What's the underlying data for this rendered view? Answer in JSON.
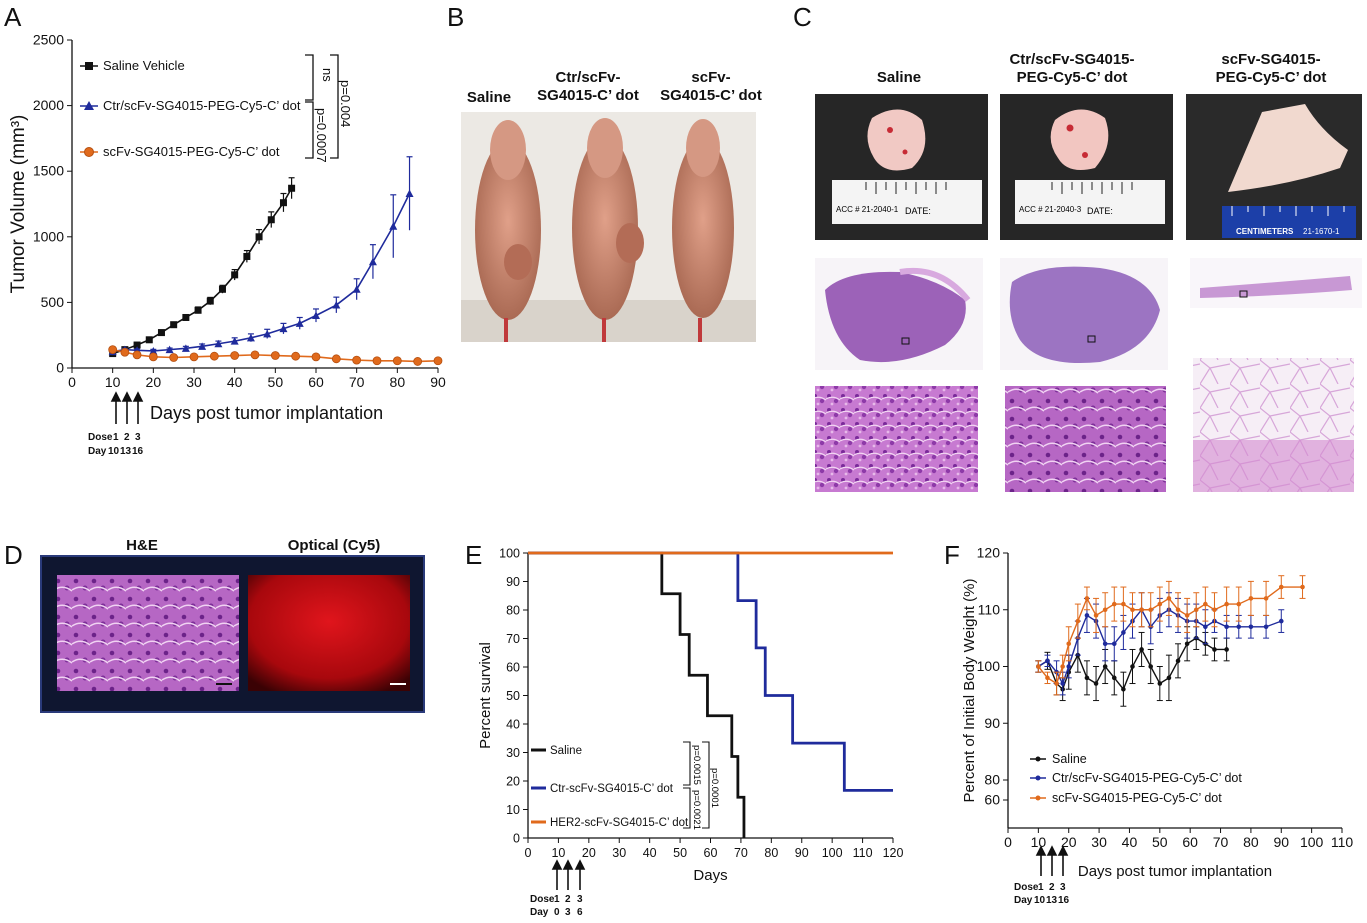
{
  "panels": {
    "A": {
      "letter": "A",
      "legend": [
        "Saline Vehicle",
        "Ctr/scFv-SG4015-PEG-Cy5-C’ dot",
        "scFv-SG4015-PEG-Cy5-C’ dot"
      ],
      "stats": {
        "ns": "ns",
        "p1": "p=0.004",
        "p2": "p=0.0007"
      },
      "xlabel": "Days post tumor implantation",
      "ylabel": "Tumor Volume (mm³)",
      "dose_label": "Dose",
      "day_label": "Day",
      "dose_numbers": [
        "1",
        "2",
        "3"
      ],
      "dose_days": [
        "10",
        "13",
        "16"
      ]
    },
    "B": {
      "letter": "B",
      "headers": [
        "Saline",
        "Ctr/scFv-\nSG4015-C’ dot",
        "scFv-\nSG4015-C’ dot"
      ]
    },
    "C": {
      "letter": "C",
      "headers": [
        "Saline",
        "Ctr/scFv-SG4015-\nPEG-Cy5-C’ dot",
        "scFv-SG4015-\nPEG-Cy5-C’ dot"
      ],
      "acc_labels": [
        "ACC # 21-2040-1",
        "ACC # 21-2040-3"
      ],
      "date_label": "DATE:",
      "ruler_label": "CENTIMETERS",
      "ruler_id": "21-1670-1"
    },
    "D": {
      "letter": "D",
      "headers": [
        "H&E",
        "Optical (Cy5)"
      ]
    },
    "E": {
      "letter": "E",
      "legend": [
        "Saline",
        "Ctr-scFv-SG4015-C’ dot",
        "HER2-scFv-SG4015-C’ dot"
      ],
      "stats": {
        "p1": "p=0.0015",
        "p2": "p=0.0001",
        "p3": "p=0.0021"
      },
      "xlabel": "Days",
      "ylabel": "Percent survival",
      "dose_label": "Dose",
      "day_label": "Day",
      "dose_numbers": [
        "1",
        "2",
        "3"
      ],
      "dose_days": [
        "0",
        "3",
        "6"
      ]
    },
    "F": {
      "letter": "F",
      "legend": [
        "Saline",
        "Ctr/scFv-SG4015-PEG-Cy5-C’ dot",
        "scFv-SG4015-PEG-Cy5-C’ dot"
      ],
      "xlabel": "Days post tumor implantation",
      "ylabel": "Percent of Initial Body Weight (%)",
      "dose_label": "Dose",
      "day_label": "Day",
      "dose_numbers": [
        "1",
        "2",
        "3"
      ],
      "dose_days": [
        "10",
        "13",
        "16"
      ]
    }
  },
  "colors": {
    "black": "#111111",
    "blue": "#1f2b9c",
    "orange": "#e06a1c"
  },
  "chart_data": [
    {
      "id": "A",
      "type": "line",
      "xlabel": "Days post tumor implantation",
      "ylabel": "Tumor Volume (mm³)",
      "xlim": [
        0,
        90
      ],
      "ylim": [
        0,
        2500
      ],
      "xticks": [
        0,
        10,
        20,
        30,
        40,
        50,
        60,
        70,
        80,
        90
      ],
      "yticks": [
        0,
        500,
        1000,
        1500,
        2000,
        2500
      ],
      "series": [
        {
          "name": "Saline Vehicle",
          "color": "#111111",
          "marker": "square",
          "x": [
            10,
            13,
            16,
            19,
            22,
            25,
            28,
            31,
            34,
            37,
            40,
            43,
            46,
            49,
            52,
            54
          ],
          "y": [
            110,
            140,
            175,
            215,
            270,
            330,
            385,
            440,
            510,
            600,
            710,
            850,
            1000,
            1130,
            1260,
            1370
          ],
          "err": [
            10,
            12,
            14,
            15,
            18,
            20,
            22,
            25,
            28,
            30,
            40,
            45,
            55,
            60,
            70,
            80
          ]
        },
        {
          "name": "Ctr/scFv-SG4015-PEG-Cy5-C’ dot",
          "color": "#1f2b9c",
          "marker": "triangle",
          "x": [
            10,
            13,
            16,
            20,
            24,
            28,
            32,
            36,
            40,
            44,
            48,
            52,
            56,
            60,
            65,
            70,
            74,
            79,
            83
          ],
          "y": [
            125,
            140,
            135,
            130,
            140,
            150,
            165,
            185,
            205,
            230,
            260,
            300,
            340,
            400,
            480,
            600,
            810,
            1080,
            1330
          ],
          "err": [
            10,
            10,
            10,
            12,
            12,
            15,
            18,
            20,
            25,
            30,
            35,
            40,
            45,
            50,
            60,
            80,
            130,
            240,
            280
          ]
        },
        {
          "name": "scFv-SG4015-PEG-Cy5-C’ dot",
          "color": "#e06a1c",
          "marker": "circle",
          "x": [
            10,
            13,
            16,
            20,
            25,
            30,
            35,
            40,
            45,
            50,
            55,
            60,
            65,
            70,
            75,
            80,
            85,
            90
          ],
          "y": [
            140,
            120,
            100,
            85,
            80,
            85,
            90,
            95,
            100,
            95,
            90,
            85,
            70,
            60,
            55,
            55,
            50,
            55
          ],
          "err": [
            10,
            10,
            10,
            10,
            10,
            10,
            10,
            10,
            10,
            10,
            10,
            10,
            10,
            10,
            10,
            10,
            10,
            10
          ]
        }
      ]
    },
    {
      "id": "E",
      "type": "line",
      "xlabel": "Days",
      "ylabel": "Percent survival",
      "xlim": [
        0,
        120
      ],
      "ylim": [
        0,
        100
      ],
      "xticks": [
        0,
        10,
        20,
        30,
        40,
        50,
        60,
        70,
        80,
        90,
        100,
        110,
        120
      ],
      "yticks": [
        0,
        10,
        20,
        30,
        40,
        50,
        60,
        70,
        80,
        90,
        100
      ],
      "series": [
        {
          "name": "Saline",
          "color": "#111111",
          "step": true,
          "x": [
            0,
            44,
            44,
            50,
            50,
            53,
            53,
            59,
            59,
            67,
            67,
            69,
            69,
            71,
            71
          ],
          "y": [
            100,
            100,
            85.7,
            85.7,
            71.4,
            71.4,
            57.1,
            57.1,
            42.9,
            42.9,
            28.6,
            28.6,
            14.3,
            14.3,
            0
          ]
        },
        {
          "name": "Ctr-scFv-SG4015-C’ dot",
          "color": "#1f2b9c",
          "step": true,
          "x": [
            0,
            69,
            69,
            75,
            75,
            78,
            78,
            87,
            87,
            104,
            104,
            120
          ],
          "y": [
            100,
            100,
            83.3,
            83.3,
            66.7,
            66.7,
            50,
            50,
            33.3,
            33.3,
            16.7,
            16.7
          ]
        },
        {
          "name": "HER2-scFv-SG4015-C’ dot",
          "color": "#e06a1c",
          "step": true,
          "x": [
            0,
            120
          ],
          "y": [
            100,
            100
          ]
        }
      ]
    },
    {
      "id": "F",
      "type": "line",
      "xlabel": "Days post tumor implantation",
      "ylabel": "Percent of Initial Body Weight (%)",
      "xlim": [
        0,
        110
      ],
      "ylim": [
        60,
        120
      ],
      "xticks": [
        0,
        10,
        20,
        30,
        40,
        50,
        60,
        70,
        80,
        90,
        100,
        110
      ],
      "yticks": [
        60,
        80,
        90,
        100,
        110,
        120
      ],
      "series": [
        {
          "name": "Saline",
          "color": "#111111",
          "x": [
            10,
            13,
            16,
            18,
            20,
            23,
            26,
            29,
            32,
            35,
            38,
            41,
            44,
            47,
            50,
            53,
            56,
            59,
            62,
            65,
            68,
            72
          ],
          "y": [
            100,
            101,
            97,
            96,
            99,
            102,
            98,
            97,
            100,
            98,
            96,
            100,
            103,
            100,
            97,
            98,
            101,
            104,
            105,
            104,
            103,
            103
          ],
          "err": [
            1,
            1.5,
            2,
            2,
            3,
            3,
            3,
            3,
            3,
            3,
            3,
            3,
            3,
            3,
            3,
            4,
            3,
            3,
            2,
            2,
            2,
            2
          ]
        },
        {
          "name": "Ctr/scFv-SG4015-PEG-Cy5-C’ dot",
          "color": "#1f2b9c",
          "x": [
            10,
            13,
            16,
            18,
            20,
            23,
            26,
            29,
            32,
            35,
            38,
            41,
            44,
            47,
            50,
            53,
            56,
            59,
            62,
            65,
            68,
            72,
            76,
            80,
            85,
            90
          ],
          "y": [
            100,
            101,
            99,
            97,
            100,
            105,
            109,
            108,
            104,
            104,
            106,
            108,
            110,
            107,
            109,
            110,
            109,
            108,
            108,
            107,
            108,
            107,
            107,
            107,
            107,
            108
          ],
          "err": [
            1,
            1,
            2,
            2,
            2,
            3,
            3,
            3,
            3,
            3,
            3,
            3,
            3,
            3,
            3,
            3,
            3,
            3,
            3,
            3,
            2,
            2,
            2,
            2,
            2,
            2
          ]
        },
        {
          "name": "scFv-SG4015-PEG-Cy5-C’ dot",
          "color": "#e06a1c",
          "x": [
            10,
            13,
            16,
            18,
            20,
            23,
            26,
            29,
            32,
            35,
            38,
            41,
            44,
            47,
            50,
            53,
            56,
            59,
            62,
            65,
            68,
            72,
            76,
            80,
            85,
            90,
            97
          ],
          "y": [
            100,
            98,
            97,
            100,
            104,
            108,
            112,
            109,
            110,
            111,
            111,
            110,
            110,
            110,
            111,
            112,
            110,
            109,
            110,
            111,
            110,
            111,
            111,
            112,
            112,
            114,
            114
          ],
          "err": [
            1,
            1,
            2,
            2,
            3,
            3,
            2,
            3,
            3,
            3,
            3,
            3,
            3,
            3,
            3,
            3,
            3,
            3,
            3,
            3,
            3,
            3,
            3,
            3,
            3,
            2,
            2
          ]
        }
      ]
    }
  ]
}
